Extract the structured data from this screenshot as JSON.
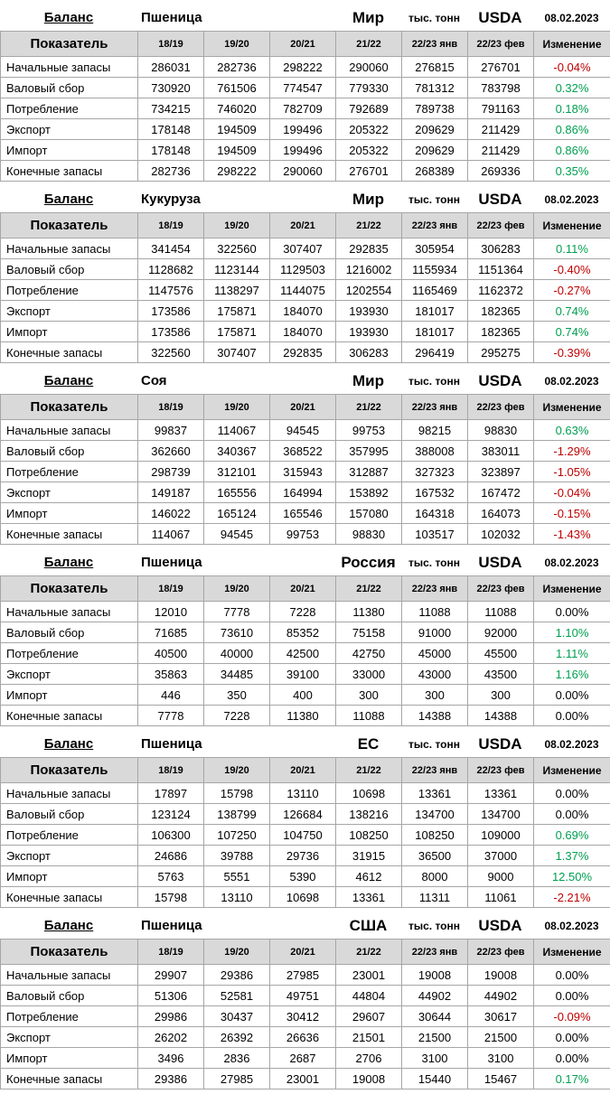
{
  "report": {
    "balance_label": "Баланс",
    "units_label": "тыс. тонн",
    "source_label": "USDA",
    "date": "08.02.2023",
    "indicator_label": "Показатель",
    "change_label": "Изменение",
    "season_columns": [
      "18/19",
      "19/20",
      "20/21",
      "21/22",
      "22/23 янв",
      "22/23 фев"
    ]
  },
  "colors": {
    "positive_change": "#00a050",
    "negative_change": "#c00000",
    "header_background": "#d9d9d9",
    "table_border": "#a6a6a6"
  },
  "tables": [
    {
      "commodity": "Пшеница",
      "region": "Мир",
      "rows": [
        {
          "label": "Начальные запасы",
          "values": [
            286031,
            282736,
            298222,
            290060,
            276815,
            276701
          ],
          "change": "-0.04%"
        },
        {
          "label": "Валовый сбор",
          "values": [
            730920,
            761506,
            774547,
            779330,
            781312,
            783798
          ],
          "change": "0.32%"
        },
        {
          "label": "Потребление",
          "values": [
            734215,
            746020,
            782709,
            792689,
            789738,
            791163
          ],
          "change": "0.18%"
        },
        {
          "label": "Экспорт",
          "values": [
            178148,
            194509,
            199496,
            205322,
            209629,
            211429
          ],
          "change": "0.86%"
        },
        {
          "label": "Импорт",
          "values": [
            178148,
            194509,
            199496,
            205322,
            209629,
            211429
          ],
          "change": "0.86%"
        },
        {
          "label": "Конечные запасы",
          "values": [
            282736,
            298222,
            290060,
            276701,
            268389,
            269336
          ],
          "change": "0.35%"
        }
      ]
    },
    {
      "commodity": "Кукуруза",
      "region": "Мир",
      "rows": [
        {
          "label": "Начальные запасы",
          "values": [
            341454,
            322560,
            307407,
            292835,
            305954,
            306283
          ],
          "change": "0.11%"
        },
        {
          "label": "Валовый сбор",
          "values": [
            1128682,
            1123144,
            1129503,
            1216002,
            1155934,
            1151364
          ],
          "change": "-0.40%"
        },
        {
          "label": "Потребление",
          "values": [
            1147576,
            1138297,
            1144075,
            1202554,
            1165469,
            1162372
          ],
          "change": "-0.27%"
        },
        {
          "label": "Экспорт",
          "values": [
            173586,
            175871,
            184070,
            193930,
            181017,
            182365
          ],
          "change": "0.74%"
        },
        {
          "label": "Импорт",
          "values": [
            173586,
            175871,
            184070,
            193930,
            181017,
            182365
          ],
          "change": "0.74%"
        },
        {
          "label": "Конечные запасы",
          "values": [
            322560,
            307407,
            292835,
            306283,
            296419,
            295275
          ],
          "change": "-0.39%"
        }
      ]
    },
    {
      "commodity": "Соя",
      "region": "Мир",
      "rows": [
        {
          "label": "Начальные запасы",
          "values": [
            99837,
            114067,
            94545,
            99753,
            98215,
            98830
          ],
          "change": "0.63%"
        },
        {
          "label": "Валовый сбор",
          "values": [
            362660,
            340367,
            368522,
            357995,
            388008,
            383011
          ],
          "change": "-1.29%"
        },
        {
          "label": "Потребление",
          "values": [
            298739,
            312101,
            315943,
            312887,
            327323,
            323897
          ],
          "change": "-1.05%"
        },
        {
          "label": "Экспорт",
          "values": [
            149187,
            165556,
            164994,
            153892,
            167532,
            167472
          ],
          "change": "-0.04%"
        },
        {
          "label": "Импорт",
          "values": [
            146022,
            165124,
            165546,
            157080,
            164318,
            164073
          ],
          "change": "-0.15%"
        },
        {
          "label": "Конечные запасы",
          "values": [
            114067,
            94545,
            99753,
            98830,
            103517,
            102032
          ],
          "change": "-1.43%"
        }
      ]
    },
    {
      "commodity": "Пшеница",
      "region": "Россия",
      "rows": [
        {
          "label": "Начальные запасы",
          "values": [
            12010,
            7778,
            7228,
            11380,
            11088,
            11088
          ],
          "change": "0.00%"
        },
        {
          "label": "Валовый сбор",
          "values": [
            71685,
            73610,
            85352,
            75158,
            91000,
            92000
          ],
          "change": "1.10%"
        },
        {
          "label": "Потребление",
          "values": [
            40500,
            40000,
            42500,
            42750,
            45000,
            45500
          ],
          "change": "1.11%"
        },
        {
          "label": "Экспорт",
          "values": [
            35863,
            34485,
            39100,
            33000,
            43000,
            43500
          ],
          "change": "1.16%"
        },
        {
          "label": "Импорт",
          "values": [
            446,
            350,
            400,
            300,
            300,
            300
          ],
          "change": "0.00%"
        },
        {
          "label": "Конечные запасы",
          "values": [
            7778,
            7228,
            11380,
            11088,
            14388,
            14388
          ],
          "change": "0.00%"
        }
      ]
    },
    {
      "commodity": "Пшеница",
      "region": "ЕС",
      "rows": [
        {
          "label": "Начальные запасы",
          "values": [
            17897,
            15798,
            13110,
            10698,
            13361,
            13361
          ],
          "change": "0.00%"
        },
        {
          "label": "Валовый сбор",
          "values": [
            123124,
            138799,
            126684,
            138216,
            134700,
            134700
          ],
          "change": "0.00%"
        },
        {
          "label": "Потребление",
          "values": [
            106300,
            107250,
            104750,
            108250,
            108250,
            109000
          ],
          "change": "0.69%"
        },
        {
          "label": "Экспорт",
          "values": [
            24686,
            39788,
            29736,
            31915,
            36500,
            37000
          ],
          "change": "1.37%"
        },
        {
          "label": "Импорт",
          "values": [
            5763,
            5551,
            5390,
            4612,
            8000,
            9000
          ],
          "change": "12.50%"
        },
        {
          "label": "Конечные запасы",
          "values": [
            15798,
            13110,
            10698,
            13361,
            11311,
            11061
          ],
          "change": "-2.21%"
        }
      ]
    },
    {
      "commodity": "Пшеница",
      "region": "США",
      "rows": [
        {
          "label": "Начальные запасы",
          "values": [
            29907,
            29386,
            27985,
            23001,
            19008,
            19008
          ],
          "change": "0.00%"
        },
        {
          "label": "Валовый сбор",
          "values": [
            51306,
            52581,
            49751,
            44804,
            44902,
            44902
          ],
          "change": "0.00%"
        },
        {
          "label": "Потребление",
          "values": [
            29986,
            30437,
            30412,
            29607,
            30644,
            30617
          ],
          "change": "-0.09%"
        },
        {
          "label": "Экспорт",
          "values": [
            26202,
            26392,
            26636,
            21501,
            21500,
            21500
          ],
          "change": "0.00%"
        },
        {
          "label": "Импорт",
          "values": [
            3496,
            2836,
            2687,
            2706,
            3100,
            3100
          ],
          "change": "0.00%"
        },
        {
          "label": "Конечные запасы",
          "values": [
            29386,
            27985,
            23001,
            19008,
            15440,
            15467
          ],
          "change": "0.17%"
        }
      ]
    }
  ]
}
